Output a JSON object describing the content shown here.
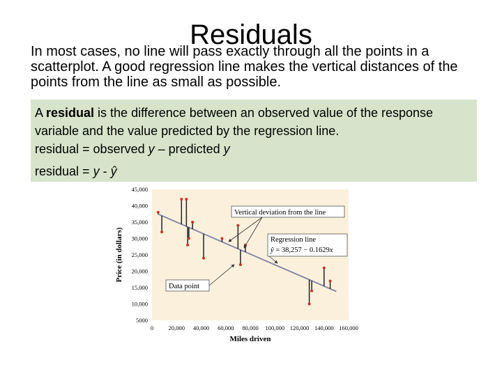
{
  "slide": {
    "title": "Residuals",
    "intro": "In most cases, no line will pass exactly through all the points in a scatterplot. A good regression line makes the vertical distances of the points from the line as small as possible.",
    "definition": {
      "lead": "A ",
      "term": "residual",
      "rest": " is the difference between an observed value of the response variable and the value predicted by the regression line.",
      "formula1_prefix": "residual = observed ",
      "formula1_y": "y",
      "formula1_mid": " – predicted ",
      "formula1_y2": "y",
      "formula2_prefix": "residual = ",
      "formula2_y": "y",
      "formula2_mid": " - ",
      "formula2_yhat": "ŷ"
    }
  },
  "chart_data": {
    "type": "scatter",
    "title": "",
    "xlabel": "Miles driven",
    "ylabel": "Price (in dollars)",
    "xlim": [
      0,
      160000
    ],
    "ylim": [
      5000,
      45000
    ],
    "x_ticks": [
      "0",
      "20,000",
      "40,000",
      "60,000",
      "80,000",
      "100,000",
      "120,000",
      "140,000",
      "160,000"
    ],
    "y_ticks": [
      "5000",
      "10,000",
      "15,000",
      "20,000",
      "25,000",
      "30,000",
      "35,000",
      "40,000",
      "45,000"
    ],
    "points": [
      {
        "x": 5000,
        "y": 38000
      },
      {
        "x": 8000,
        "y": 32000
      },
      {
        "x": 24000,
        "y": 42000
      },
      {
        "x": 28000,
        "y": 42000
      },
      {
        "x": 29000,
        "y": 28000
      },
      {
        "x": 30000,
        "y": 30000
      },
      {
        "x": 33000,
        "y": 35000
      },
      {
        "x": 42000,
        "y": 24000
      },
      {
        "x": 57000,
        "y": 30000
      },
      {
        "x": 70000,
        "y": 34000
      },
      {
        "x": 72000,
        "y": 22000
      },
      {
        "x": 76000,
        "y": 28000
      },
      {
        "x": 128000,
        "y": 10000
      },
      {
        "x": 130000,
        "y": 14000
      },
      {
        "x": 140000,
        "y": 21000
      },
      {
        "x": 145000,
        "y": 17000
      }
    ],
    "regression": {
      "intercept": 38257,
      "slope": -0.1629,
      "x_range": [
        5000,
        150000
      ]
    },
    "annotations": {
      "vertical_deviation": "Vertical deviation from the line",
      "regression_line": "Regression line",
      "equation_lhs": "ŷ",
      "equation_rhs": " = 38,257 − 0.1629",
      "equation_var": "x",
      "data_point": "Data point"
    },
    "colors": {
      "background": "#fbf0dc",
      "line": "#8a8aa8",
      "point": "#c0392b",
      "residual": "#222222"
    }
  }
}
